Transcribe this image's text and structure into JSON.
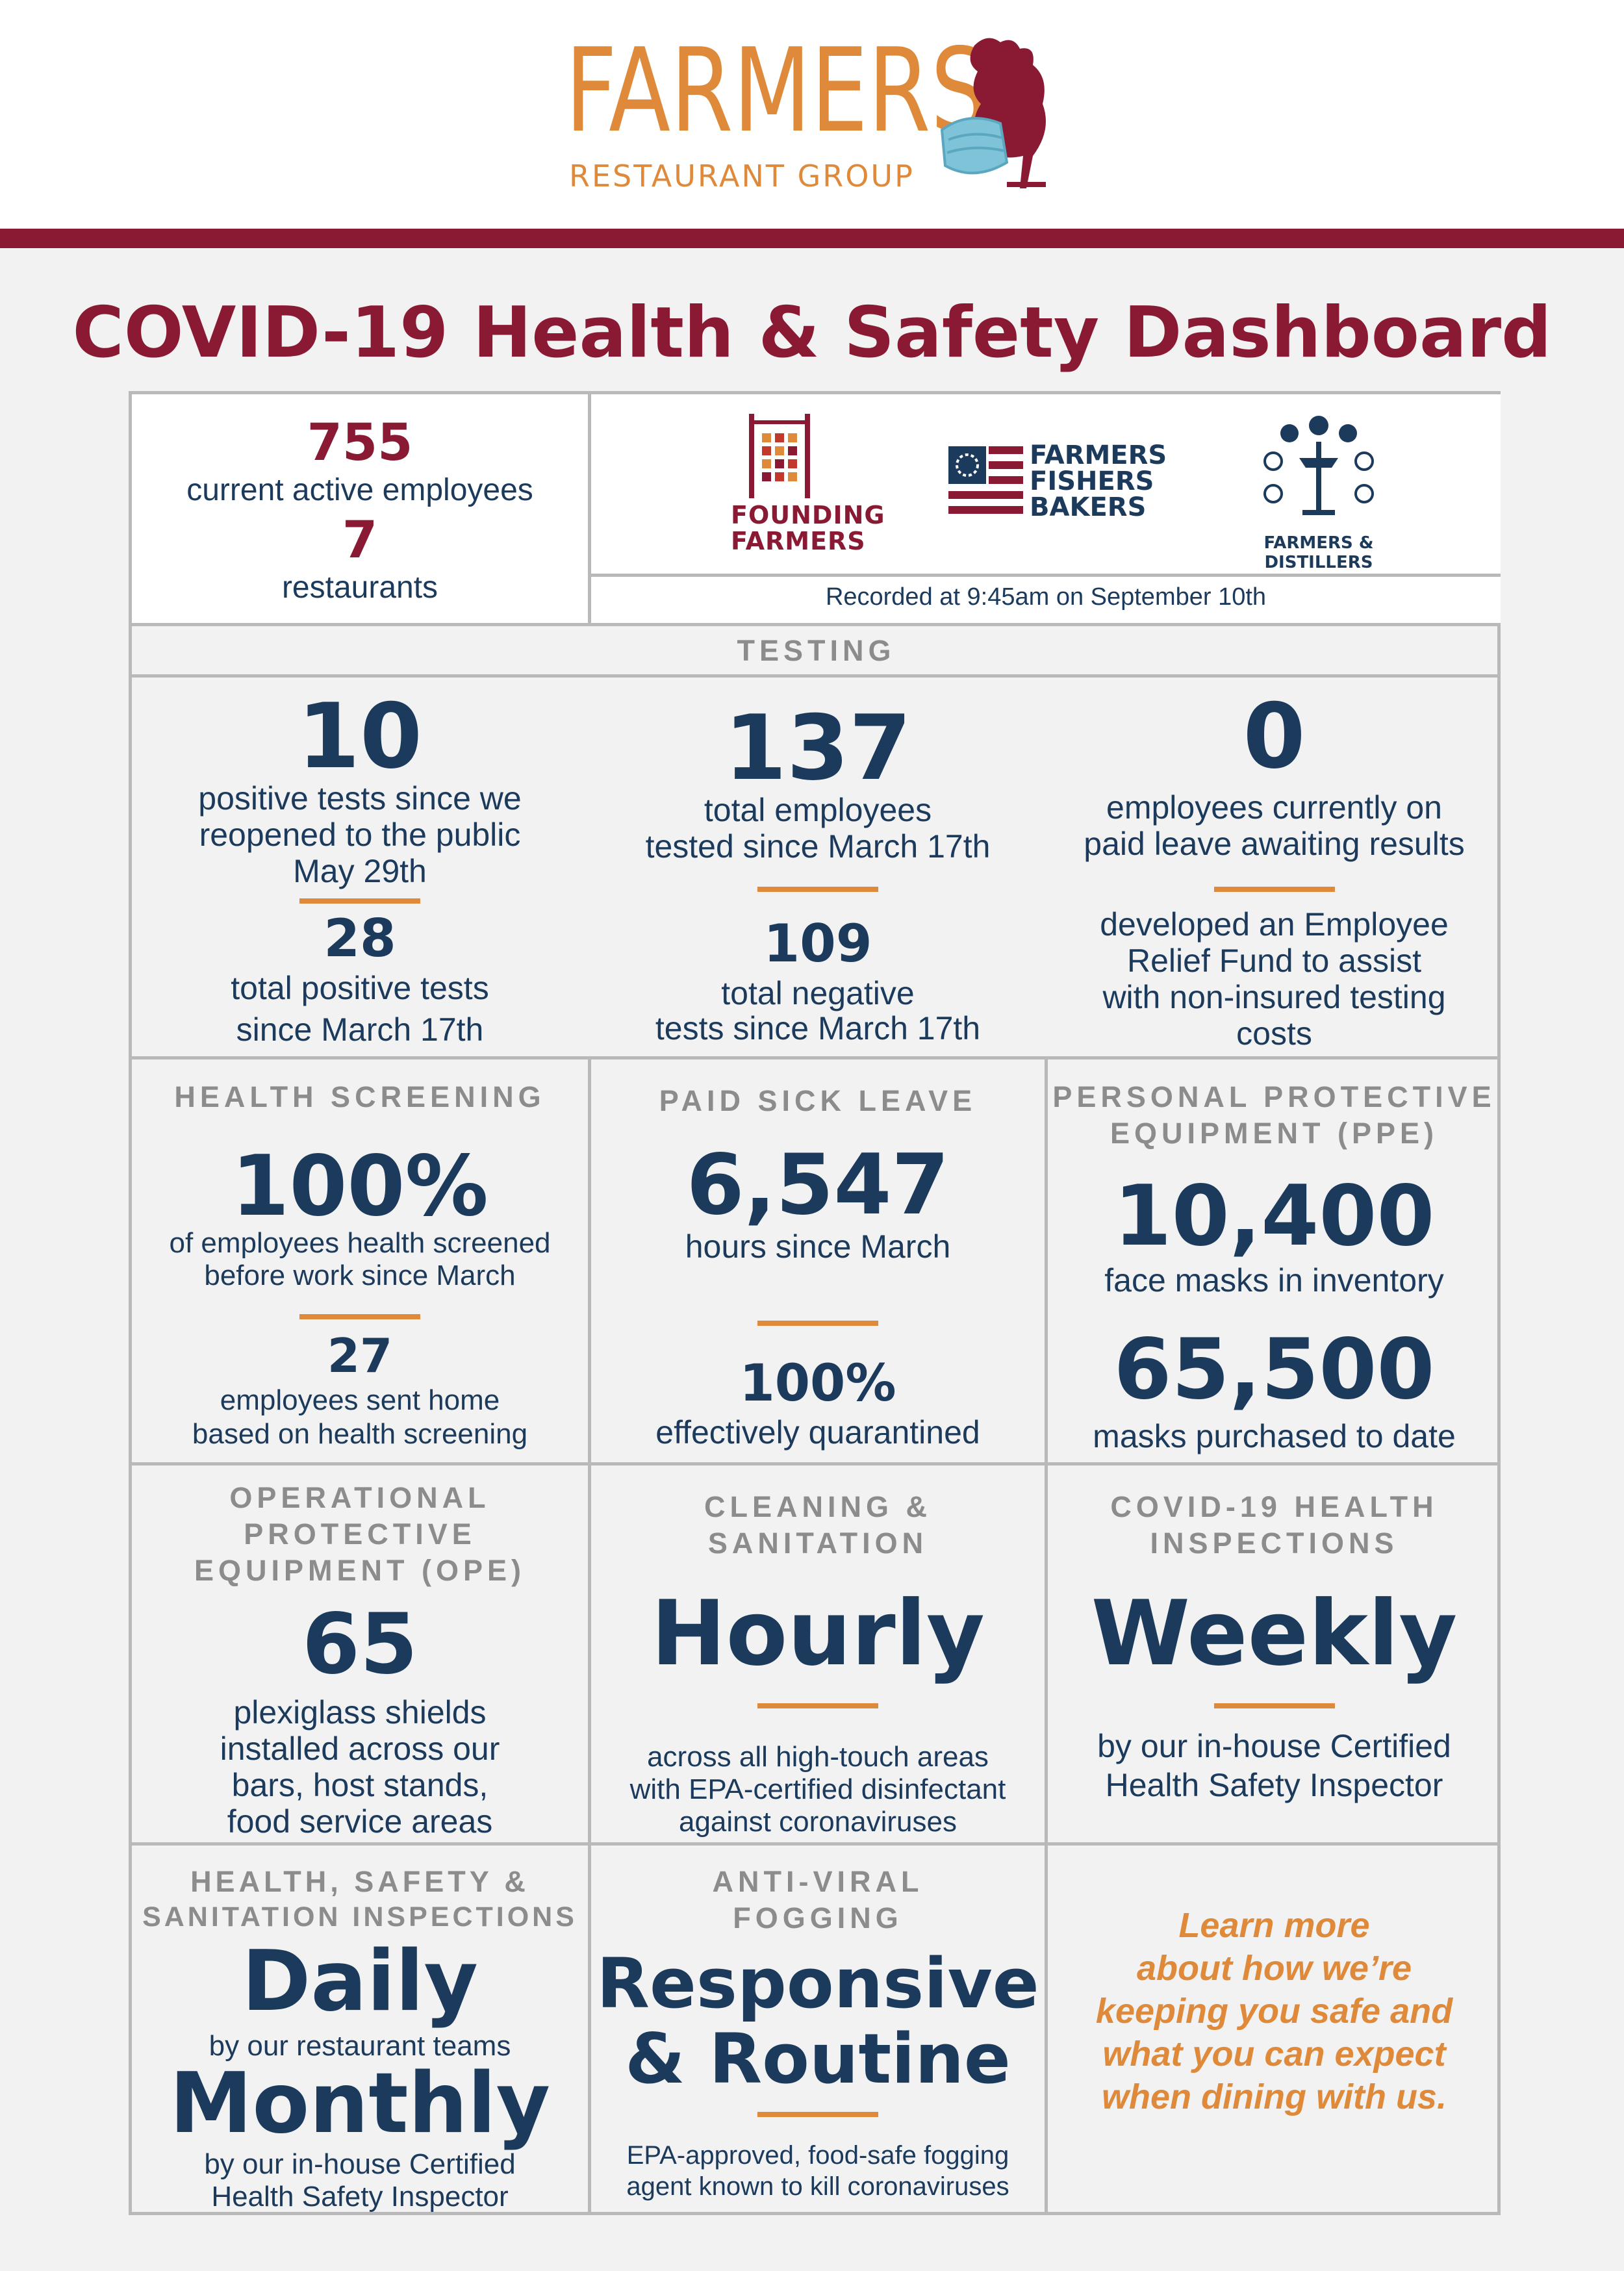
{
  "brand": {
    "name": "FARMERS",
    "subtitle": "RESTAURANT GROUP"
  },
  "title": "COVID-19 Health & Safety Dashboard",
  "summary": {
    "employees_value": "755",
    "employees_label": "current active employees",
    "restaurants_value": "7",
    "restaurants_label": "restaurants"
  },
  "brands": {
    "founding_farmers": [
      "FOUNDING",
      "FARMERS"
    ],
    "farmers_fishers_bakers": [
      "FARMERS",
      "FISHERS",
      "BAKERS"
    ],
    "farmers_distillers": "FARMERS & DISTILLERS"
  },
  "recorded": "Recorded at 9:45am on September 10th",
  "testing": {
    "heading": "TESTING",
    "col1": {
      "value": "10",
      "label": [
        "positive tests since we",
        "reopened to the public",
        "May 29th"
      ],
      "sub_value": "28",
      "sub_label": [
        "total positive tests",
        "since March 17th"
      ]
    },
    "col2": {
      "value": "137",
      "label": [
        "total employees",
        "tested since March 17th"
      ],
      "sub_value": "109",
      "sub_label": [
        "total negative",
        "tests since March 17th"
      ]
    },
    "col3": {
      "value": "0",
      "label": [
        "employees currently on",
        "paid leave awaiting results"
      ],
      "sub_label": [
        "developed an Employee",
        "Relief Fund to assist",
        "with non-insured testing",
        "costs"
      ]
    }
  },
  "health_screening": {
    "heading": "HEALTH SCREENING",
    "value": "100%",
    "label": [
      "of employees health screened",
      "before work since March"
    ],
    "sub_value": "27",
    "sub_label": [
      "employees sent home",
      "based on health screening"
    ]
  },
  "paid_sick_leave": {
    "heading": "PAID SICK LEAVE",
    "value": "6,547",
    "label": "hours since March",
    "sub_value": "100%",
    "sub_label": "effectively quarantined"
  },
  "ppe": {
    "heading": [
      "PERSONAL PROTECTIVE",
      "EQUIPMENT (PPE)"
    ],
    "value": "10,400",
    "label": "face masks in inventory",
    "sub_value": "65,500",
    "sub_label": "masks purchased to date"
  },
  "ope": {
    "heading": [
      "OPERATIONAL",
      "PROTECTIVE",
      "EQUIPMENT (OPE)"
    ],
    "value": "65",
    "label": [
      "plexiglass shields",
      "installed across our",
      "bars, host stands,",
      "food service areas"
    ]
  },
  "cleaning": {
    "heading": [
      "CLEANING &",
      "SANITATION"
    ],
    "value": "Hourly",
    "label": [
      "across all high-touch areas",
      "with EPA-certified disinfectant",
      "against coronaviruses"
    ]
  },
  "inspections": {
    "heading": [
      "COVID-19 HEALTH",
      "INSPECTIONS"
    ],
    "value": "Weekly",
    "label": [
      "by our in-house Certified",
      "Health Safety Inspector"
    ]
  },
  "hss": {
    "heading": [
      "HEALTH, SAFETY &",
      "SANITATION INSPECTIONS"
    ],
    "value": "Daily",
    "label": "by our restaurant teams",
    "sub_value": "Monthly",
    "sub_label": [
      "by our in-house Certified",
      "Health Safety Inspector"
    ]
  },
  "fogging": {
    "heading": [
      "ANTI-VIRAL",
      "FOGGING"
    ],
    "value": [
      "Responsive",
      "& Routine"
    ],
    "label": [
      "EPA-approved, food-safe fogging",
      "agent known to kill coronaviruses"
    ]
  },
  "learn_more": [
    "Learn more",
    "about how we’re",
    "keeping you safe and",
    "what you can expect",
    "when dining with us."
  ],
  "colors": {
    "maroon": "#8a1a34",
    "navy": "#1b3a5c",
    "orange": "#de8a3a",
    "gray": "#8c8c8c"
  }
}
